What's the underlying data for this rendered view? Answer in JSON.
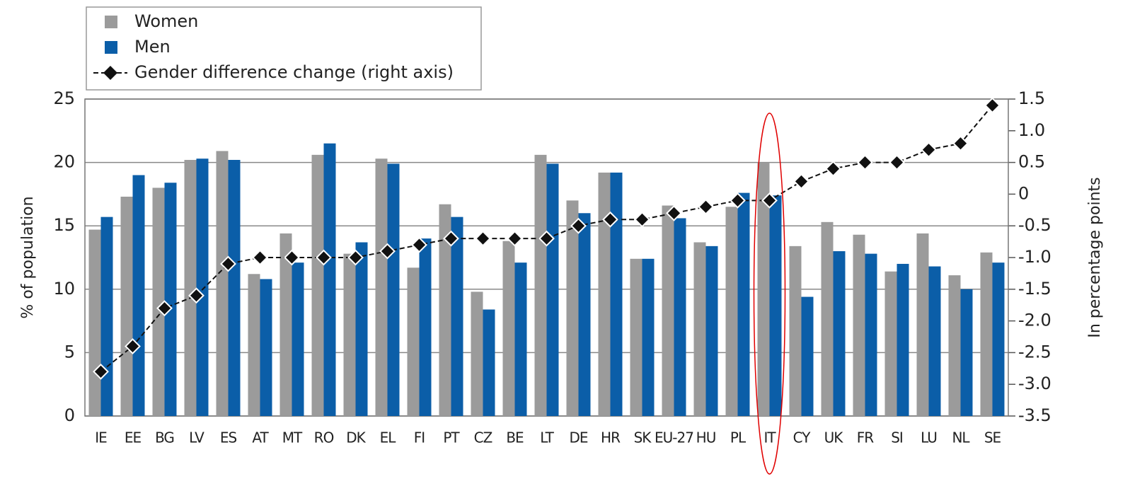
{
  "chart_data": {
    "type": "bar_line",
    "categories": [
      "IE",
      "EE",
      "BG",
      "LV",
      "ES",
      "AT",
      "MT",
      "RO",
      "DK",
      "EL",
      "FI",
      "PT",
      "CZ",
      "BE",
      "LT",
      "DE",
      "HR",
      "SK",
      "EU-27",
      "HU",
      "PL",
      "IT",
      "CY",
      "UK",
      "FR",
      "SI",
      "LU",
      "NL",
      "SE"
    ],
    "series": [
      {
        "name": "Women",
        "color": "#9b9b9b",
        "values": [
          14.7,
          17.3,
          18.0,
          20.2,
          20.9,
          11.2,
          14.4,
          20.6,
          12.8,
          20.3,
          11.7,
          16.7,
          9.8,
          13.8,
          20.6,
          17.0,
          19.2,
          12.4,
          16.6,
          13.7,
          16.5,
          20.0,
          13.4,
          15.3,
          14.3,
          11.4,
          14.4,
          11.1,
          12.9
        ]
      },
      {
        "name": "Men",
        "color": "#0b5ea8",
        "values": [
          15.7,
          19.0,
          18.4,
          20.3,
          20.2,
          10.8,
          12.1,
          21.5,
          13.7,
          19.9,
          14.0,
          15.7,
          8.4,
          12.1,
          19.9,
          16.0,
          19.2,
          12.4,
          15.6,
          13.4,
          17.6,
          17.4,
          9.4,
          13.0,
          12.8,
          12.0,
          11.8,
          10.0,
          12.1
        ]
      },
      {
        "name": "Gender difference change (right axis)",
        "color": "#111111",
        "axis": "y2",
        "values": [
          -2.8,
          -2.4,
          -1.8,
          -1.6,
          -1.1,
          -1.0,
          -1.0,
          -1.0,
          -1.0,
          -0.9,
          -0.8,
          -0.7,
          -0.7,
          -0.7,
          -0.7,
          -0.5,
          -0.4,
          -0.4,
          -0.3,
          -0.2,
          -0.1,
          -0.1,
          0.2,
          0.4,
          0.5,
          0.5,
          0.7,
          0.8,
          1.4
        ]
      }
    ],
    "ylabel": "% of population",
    "y2label": "In percentage points",
    "ylim": [
      0,
      25
    ],
    "yticks": [
      0,
      5,
      10,
      15,
      20,
      25
    ],
    "y2lim": [
      -3.5,
      1.5
    ],
    "y2ticks": [
      {
        "value": 1.5,
        "label": "1.5"
      },
      {
        "value": 1,
        "label": "1.0"
      },
      0.5,
      0,
      -0.5,
      {
        "value": -1,
        "label": "-1.0"
      },
      -1.5,
      {
        "value": -2,
        "label": "-2.0"
      },
      -2.5,
      {
        "value": -3,
        "label": "-3.0"
      },
      -3.5
    ],
    "grid": true
  }
}
